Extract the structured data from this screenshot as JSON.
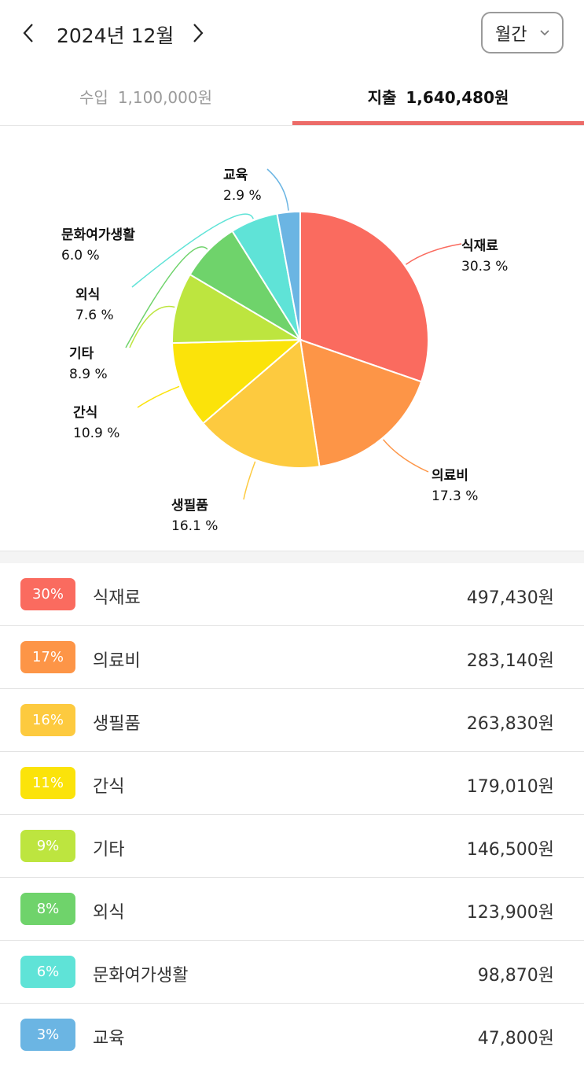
{
  "header": {
    "month_title": "2024년 12월",
    "period_label": "월간",
    "prev_icon": "chevron-left-icon",
    "next_icon": "chevron-right-icon"
  },
  "tabs": {
    "income_label": "수입",
    "income_amount": "1,100,000원",
    "expense_label": "지출",
    "expense_amount": "1,640,480원",
    "active": "expense",
    "accent_color": "#ec6b68"
  },
  "chart_data": {
    "type": "pie",
    "categories": [
      "식재료",
      "의료비",
      "생필품",
      "간식",
      "기타",
      "외식",
      "문화여가생활",
      "교육"
    ],
    "values": [
      30.3,
      17.3,
      16.1,
      10.9,
      8.9,
      7.6,
      6.0,
      2.9
    ],
    "value_labels": [
      "30.3 %",
      "17.3 %",
      "16.1 %",
      "10.9 %",
      "8.9 %",
      "7.6 %",
      "6.0 %",
      "2.9 %"
    ],
    "colors": [
      "#fa6b5f",
      "#fd9547",
      "#fdca3f",
      "#fbe30a",
      "#bde53f",
      "#6fd36b",
      "#5fe3d7",
      "#6bb5e3"
    ]
  },
  "list": [
    {
      "badge": "30%",
      "name": "식재료",
      "amount": "497,430원",
      "color": "#fa6b5f"
    },
    {
      "badge": "17%",
      "name": "의료비",
      "amount": "283,140원",
      "color": "#fd9547"
    },
    {
      "badge": "16%",
      "name": "생필품",
      "amount": "263,830원",
      "color": "#fdca3f"
    },
    {
      "badge": "11%",
      "name": "간식",
      "amount": "179,010원",
      "color": "#fbe30a"
    },
    {
      "badge": "9%",
      "name": "기타",
      "amount": "146,500원",
      "color": "#bde53f"
    },
    {
      "badge": "8%",
      "name": "외식",
      "amount": "123,900원",
      "color": "#6fd36b"
    },
    {
      "badge": "6%",
      "name": "문화여가생활",
      "amount": "98,870원",
      "color": "#5fe3d7"
    },
    {
      "badge": "3%",
      "name": "교육",
      "amount": "47,800원",
      "color": "#6bb5e3"
    }
  ]
}
